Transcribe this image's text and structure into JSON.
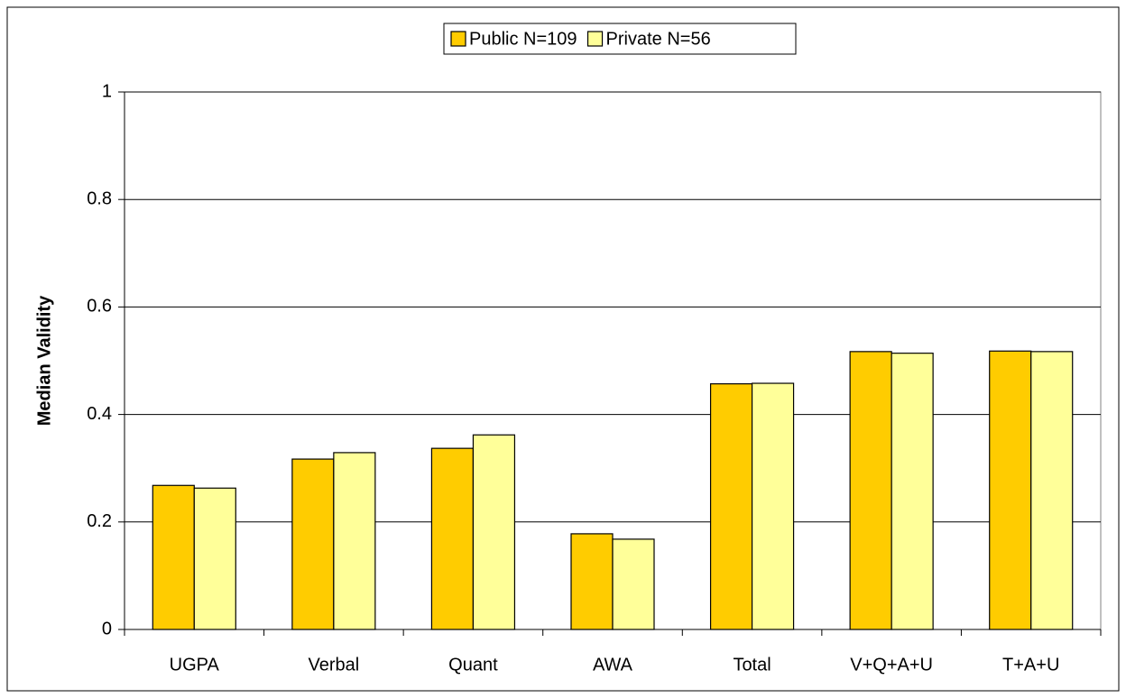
{
  "chart_data": {
    "type": "bar",
    "y_label": "Median Validity",
    "categories": [
      "UGPA",
      "Verbal",
      "Quant",
      "AWA",
      "Total",
      "V+Q+A+U",
      "T+A+U"
    ],
    "series": [
      {
        "name": "Public N=109",
        "color": "#ffcc00",
        "values": [
          0.268,
          0.317,
          0.337,
          0.178,
          0.457,
          0.517,
          0.518
        ]
      },
      {
        "name": "Private N=56",
        "color": "#ffff99",
        "values": [
          0.263,
          0.329,
          0.362,
          0.168,
          0.458,
          0.514,
          0.517
        ]
      }
    ],
    "ylim": [
      0,
      1
    ],
    "yticks": [
      0,
      0.2,
      0.4,
      0.6,
      0.8,
      1
    ],
    "grid": true,
    "legend": "top"
  }
}
